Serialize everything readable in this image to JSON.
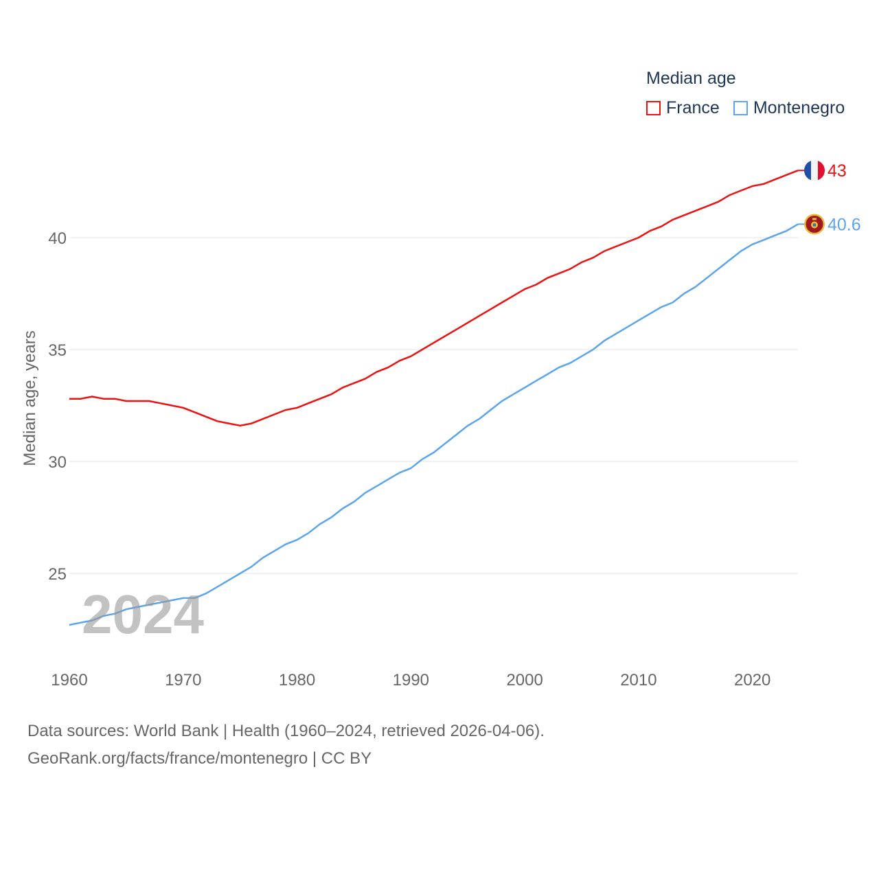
{
  "chart_data": {
    "type": "line",
    "title": "Median age",
    "xlabel": "",
    "ylabel": "Median age, years",
    "xlim": [
      1960,
      2024
    ],
    "ylim": [
      22,
      44
    ],
    "yticks": [
      25,
      30,
      35,
      40
    ],
    "xticks": [
      1960,
      1970,
      1980,
      1990,
      2000,
      2010,
      2020
    ],
    "grid": true,
    "legend_position": "top-right",
    "watermark_year": "2024",
    "x": [
      1960,
      1961,
      1962,
      1963,
      1964,
      1965,
      1966,
      1967,
      1968,
      1969,
      1970,
      1971,
      1972,
      1973,
      1974,
      1975,
      1976,
      1977,
      1978,
      1979,
      1980,
      1981,
      1982,
      1983,
      1984,
      1985,
      1986,
      1987,
      1988,
      1989,
      1990,
      1991,
      1992,
      1993,
      1994,
      1995,
      1996,
      1997,
      1998,
      1999,
      2000,
      2001,
      2002,
      2003,
      2004,
      2005,
      2006,
      2007,
      2008,
      2009,
      2010,
      2011,
      2012,
      2013,
      2014,
      2015,
      2016,
      2017,
      2018,
      2019,
      2020,
      2021,
      2022,
      2023,
      2024
    ],
    "series": [
      {
        "name": "France",
        "color": "#ee1111",
        "end_label": "43",
        "values": [
          32.8,
          32.8,
          32.9,
          32.8,
          32.8,
          32.7,
          32.7,
          32.7,
          32.6,
          32.5,
          32.4,
          32.2,
          32.0,
          31.8,
          31.7,
          31.6,
          31.7,
          31.9,
          32.1,
          32.3,
          32.4,
          32.6,
          32.8,
          33.0,
          33.3,
          33.5,
          33.7,
          34.0,
          34.2,
          34.5,
          34.7,
          35.0,
          35.3,
          35.6,
          35.9,
          36.2,
          36.5,
          36.8,
          37.1,
          37.4,
          37.7,
          37.9,
          38.2,
          38.4,
          38.6,
          38.9,
          39.1,
          39.4,
          39.6,
          39.8,
          40.0,
          40.3,
          40.5,
          40.8,
          41.0,
          41.2,
          41.4,
          41.6,
          41.9,
          42.1,
          42.3,
          42.4,
          42.6,
          42.8,
          43.0
        ]
      },
      {
        "name": "Montenegro",
        "color": "#5ba4ee",
        "end_label": "40.6",
        "values": [
          22.7,
          22.8,
          22.9,
          23.1,
          23.2,
          23.4,
          23.5,
          23.6,
          23.7,
          23.8,
          23.9,
          23.9,
          24.1,
          24.4,
          24.7,
          25.0,
          25.3,
          25.7,
          26.0,
          26.3,
          26.5,
          26.8,
          27.2,
          27.5,
          27.9,
          28.2,
          28.6,
          28.9,
          29.2,
          29.5,
          29.7,
          30.1,
          30.4,
          30.8,
          31.2,
          31.6,
          31.9,
          32.3,
          32.7,
          33.0,
          33.3,
          33.6,
          33.9,
          34.2,
          34.4,
          34.7,
          35.0,
          35.4,
          35.7,
          36.0,
          36.3,
          36.6,
          36.9,
          37.1,
          37.5,
          37.8,
          38.2,
          38.6,
          39.0,
          39.4,
          39.7,
          39.9,
          40.1,
          40.3,
          40.6
        ]
      }
    ]
  },
  "source": {
    "line1": "Data sources: World Bank | Health (1960–2024, retrieved 2026-04-06).",
    "line2": "GeoRank.org/facts/france/montenegro | CC BY"
  },
  "icons": {
    "france": "france-flag-icon",
    "montenegro": "montenegro-flag-icon"
  }
}
